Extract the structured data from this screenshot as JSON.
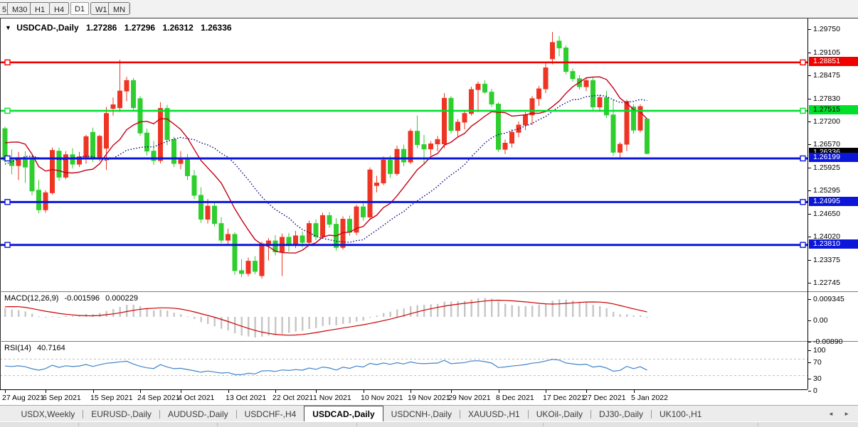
{
  "toolbar": {
    "timeframes": [
      "5",
      "M30",
      "H1",
      "H4",
      "D1",
      "W1",
      "MN"
    ],
    "active": "D1"
  },
  "chart": {
    "dropdown_icon": "▼",
    "symbol_label": "USDCAD-,Daily",
    "ohlc": {
      "open": "1.27286",
      "high": "1.27296",
      "low": "1.26312",
      "close": "1.26336"
    },
    "y_ticks": [
      "1.29750",
      "1.29105",
      "1.28475",
      "1.27830",
      "1.27200",
      "1.26570",
      "1.25925",
      "1.25295",
      "1.24650",
      "1.24020",
      "1.23375",
      "1.22745"
    ],
    "x_ticks": [
      {
        "bar": 0,
        "label": "27 Aug 2021"
      },
      {
        "bar": 6,
        "label": "6 Sep 2021"
      },
      {
        "bar": 13,
        "label": "15 Sep 2021"
      },
      {
        "bar": 20,
        "label": "24 Sep 2021"
      },
      {
        "bar": 26,
        "label": "4 Oct 2021"
      },
      {
        "bar": 33,
        "label": "13 Oct 2021"
      },
      {
        "bar": 40,
        "label": "22 Oct 2021"
      },
      {
        "bar": 46,
        "label": "1 Nov 2021"
      },
      {
        "bar": 53,
        "label": "10 Nov 2021"
      },
      {
        "bar": 60,
        "label": "19 Nov 2021"
      },
      {
        "bar": 66,
        "label": "29 Nov 2021"
      },
      {
        "bar": 73,
        "label": "8 Dec 2021"
      },
      {
        "bar": 80,
        "label": "17 Dec 2021"
      },
      {
        "bar": 86,
        "label": "27 Dec 2021"
      },
      {
        "bar": 93,
        "label": "5 Jan 2022"
      }
    ],
    "hlines": [
      {
        "price": 1.28851,
        "label": "1.28851",
        "color": "#f20000",
        "text_color": "#ffffff",
        "width": 2.6
      },
      {
        "price": 1.27515,
        "label": "1.27515",
        "color": "#00e02a",
        "text_color": "#000000",
        "width": 2.6
      },
      {
        "price": 1.26199,
        "label": "1.26199",
        "color": "#0b16d8",
        "text_color": "#ffffff",
        "width": 3
      },
      {
        "price": 1.24995,
        "label": "1.24995",
        "color": "#0b16d8",
        "text_color": "#ffffff",
        "width": 3
      },
      {
        "price": 1.2381,
        "label": "1.23810",
        "color": "#0b16d8",
        "text_color": "#ffffff",
        "width": 3
      }
    ],
    "current_price": {
      "label": "1.26336",
      "bg": "#000000",
      "text_color": "#ffffff",
      "value": 1.26336
    },
    "colors": {
      "bull": "#ee3423",
      "bear": "#2fce2f",
      "ma_fast": "#c40014",
      "ma_slow": "#000080"
    },
    "ma_seed": [
      1.2502,
      1.248,
      1.2448,
      1.247,
      1.252,
      1.2562,
      1.2588,
      1.261,
      1.2642,
      1.2622,
      1.2515,
      1.258,
      1.262,
      1.2655,
      1.2805,
      1.282,
      1.265,
      1.26,
      1.2597,
      1.2685
    ],
    "candles": [
      [
        1.2702,
        1.2708,
        1.2608,
        1.2615
      ],
      [
        1.2615,
        1.2645,
        1.2576,
        1.26
      ],
      [
        1.26,
        1.2638,
        1.256,
        1.2622
      ],
      [
        1.2622,
        1.264,
        1.2552,
        1.2596
      ],
      [
        1.2616,
        1.2628,
        1.2518,
        1.253
      ],
      [
        1.2532,
        1.256,
        1.2468,
        1.2478
      ],
      [
        1.2478,
        1.2532,
        1.247,
        1.2525
      ],
      [
        1.2525,
        1.265,
        1.252,
        1.2642
      ],
      [
        1.264,
        1.265,
        1.2558,
        1.2568
      ],
      [
        1.2568,
        1.264,
        1.2562,
        1.263
      ],
      [
        1.263,
        1.2648,
        1.2592,
        1.2604
      ],
      [
        1.2604,
        1.2638,
        1.2596,
        1.2624
      ],
      [
        1.2624,
        1.2685,
        1.2605,
        1.268
      ],
      [
        1.2692,
        1.2705,
        1.261,
        1.2618
      ],
      [
        1.2618,
        1.2685,
        1.2612,
        1.2681
      ],
      [
        1.2648,
        1.2762,
        1.2588,
        1.2744
      ],
      [
        1.2758,
        1.2788,
        1.2738,
        1.2768
      ],
      [
        1.276,
        1.2892,
        1.2748,
        1.2806
      ],
      [
        1.2806,
        1.2845,
        1.2778,
        1.2835
      ],
      [
        1.2835,
        1.2842,
        1.2752,
        1.276
      ],
      [
        1.2785,
        1.2792,
        1.2682,
        1.269
      ],
      [
        1.269,
        1.2702,
        1.2628,
        1.264
      ],
      [
        1.264,
        1.2668,
        1.2602,
        1.2614
      ],
      [
        1.2614,
        1.2775,
        1.2606,
        1.2758
      ],
      [
        1.2758,
        1.2768,
        1.2656,
        1.2672
      ],
      [
        1.2672,
        1.268,
        1.2596,
        1.2606
      ],
      [
        1.2606,
        1.264,
        1.259,
        1.2618
      ],
      [
        1.2618,
        1.2632,
        1.256,
        1.2572
      ],
      [
        1.2572,
        1.2588,
        1.2508,
        1.2518
      ],
      [
        1.2518,
        1.254,
        1.2442,
        1.2452
      ],
      [
        1.2452,
        1.2508,
        1.244,
        1.2488
      ],
      [
        1.2488,
        1.2502,
        1.2432,
        1.244
      ],
      [
        1.244,
        1.2458,
        1.2386,
        1.2394
      ],
      [
        1.2394,
        1.2426,
        1.238,
        1.241
      ],
      [
        1.241,
        1.2416,
        1.2298,
        1.231
      ],
      [
        1.231,
        1.2342,
        1.2292,
        1.2302
      ],
      [
        1.2302,
        1.2346,
        1.2294,
        1.2336
      ],
      [
        1.2336,
        1.235,
        1.23,
        1.2308
      ],
      [
        1.2296,
        1.239,
        1.2288,
        1.2384
      ],
      [
        1.238,
        1.24,
        1.2338,
        1.2392
      ],
      [
        1.2392,
        1.2408,
        1.2352,
        1.2362
      ],
      [
        1.2362,
        1.2412,
        1.2295,
        1.2402
      ],
      [
        1.2402,
        1.2414,
        1.2362,
        1.2384
      ],
      [
        1.2384,
        1.242,
        1.2372,
        1.2406
      ],
      [
        1.2406,
        1.2418,
        1.2374,
        1.2388
      ],
      [
        1.2388,
        1.2448,
        1.238,
        1.244
      ],
      [
        1.244,
        1.2452,
        1.2394,
        1.2404
      ],
      [
        1.2404,
        1.247,
        1.2398,
        1.2462
      ],
      [
        1.2462,
        1.2472,
        1.2428,
        1.2438
      ],
      [
        1.2438,
        1.2455,
        1.2365,
        1.2374
      ],
      [
        1.2374,
        1.246,
        1.2368,
        1.2452
      ],
      [
        1.2452,
        1.2462,
        1.2406,
        1.2416
      ],
      [
        1.2416,
        1.2492,
        1.2408,
        1.2486
      ],
      [
        1.2486,
        1.2502,
        1.2448,
        1.2458
      ],
      [
        1.2458,
        1.2595,
        1.2452,
        1.2588
      ],
      [
        1.2545,
        1.2572,
        1.2526,
        1.2552
      ],
      [
        1.2552,
        1.2625,
        1.2546,
        1.2615
      ],
      [
        1.2615,
        1.2628,
        1.2566,
        1.2578
      ],
      [
        1.2578,
        1.2655,
        1.2572,
        1.2645
      ],
      [
        1.2645,
        1.2658,
        1.2598,
        1.261
      ],
      [
        1.261,
        1.2702,
        1.2604,
        1.2695
      ],
      [
        1.2695,
        1.2738,
        1.2648,
        1.2658
      ],
      [
        1.2658,
        1.2685,
        1.2606,
        1.2646
      ],
      [
        1.2646,
        1.2668,
        1.2628,
        1.266
      ],
      [
        1.266,
        1.2682,
        1.264,
        1.2672
      ],
      [
        1.266,
        1.28,
        1.2648,
        1.2786
      ],
      [
        1.2786,
        1.2792,
        1.2688,
        1.2697
      ],
      [
        1.2697,
        1.2728,
        1.268,
        1.272
      ],
      [
        1.272,
        1.275,
        1.27,
        1.2744
      ],
      [
        1.2744,
        1.2818,
        1.2738,
        1.281
      ],
      [
        1.281,
        1.2832,
        1.2748,
        1.2825
      ],
      [
        1.2825,
        1.2836,
        1.2798,
        1.2803
      ],
      [
        1.2803,
        1.2812,
        1.2762,
        1.277
      ],
      [
        1.277,
        1.2775,
        1.2638,
        1.2645
      ],
      [
        1.2645,
        1.2672,
        1.2632,
        1.2662
      ],
      [
        1.2662,
        1.27,
        1.265,
        1.2692
      ],
      [
        1.2692,
        1.2722,
        1.2678,
        1.2712
      ],
      [
        1.2712,
        1.2748,
        1.2698,
        1.274
      ],
      [
        1.274,
        1.2792,
        1.2712,
        1.2785
      ],
      [
        1.2785,
        1.282,
        1.2765,
        1.2812
      ],
      [
        1.2812,
        1.2885,
        1.28,
        1.287
      ],
      [
        1.2895,
        1.2969,
        1.288,
        1.294
      ],
      [
        1.2944,
        1.2958,
        1.2902,
        1.2925
      ],
      [
        1.2925,
        1.2932,
        1.2852,
        1.286
      ],
      [
        1.286,
        1.2868,
        1.2832,
        1.284
      ],
      [
        1.284,
        1.285,
        1.281,
        1.2818
      ],
      [
        1.2818,
        1.2842,
        1.2806,
        1.2835
      ],
      [
        1.2835,
        1.2845,
        1.2752,
        1.2762
      ],
      [
        1.2762,
        1.2795,
        1.2748,
        1.2788
      ],
      [
        1.2788,
        1.2806,
        1.2732,
        1.274
      ],
      [
        1.274,
        1.2783,
        1.2627,
        1.2637
      ],
      [
        1.2637,
        1.2665,
        1.2622,
        1.2659
      ],
      [
        1.2659,
        1.2782,
        1.264,
        1.2777
      ],
      [
        1.2762,
        1.277,
        1.2688,
        1.2698
      ],
      [
        1.2698,
        1.2769,
        1.2692,
        1.2763
      ],
      [
        1.27286,
        1.27296,
        1.26312,
        1.26336
      ]
    ]
  },
  "macd": {
    "name_label": "MACD(12,26,9)",
    "value_main": "-0.001596",
    "value_signal": "0.000229",
    "y_ticks": [
      "0.009345",
      "0.00",
      "-0.00890"
    ],
    "histogram_color": "#c6c6c6",
    "signal_color": "#cc0000"
  },
  "rsi": {
    "name_label": "RSI(14)",
    "value": "40.7164",
    "y_ticks": [
      "100",
      "70",
      "30",
      "0"
    ],
    "levels": [
      70,
      30
    ],
    "line_color": "#3f84c8",
    "level_color": "#bdbdbd"
  },
  "tabs": {
    "items": [
      "USDX,Weekly",
      "EURUSD-,Daily",
      "AUDUSD-,Daily",
      "USDCHF-,H4",
      "USDCAD-,Daily",
      "USDCNH-,Daily",
      "XAUUSD-,H1",
      "UKOil-,Daily",
      "DJ30-,Daily",
      "UK100-,H1"
    ],
    "active": "USDCAD-,Daily",
    "left_arrow": "◄",
    "right_arrow": "►"
  }
}
